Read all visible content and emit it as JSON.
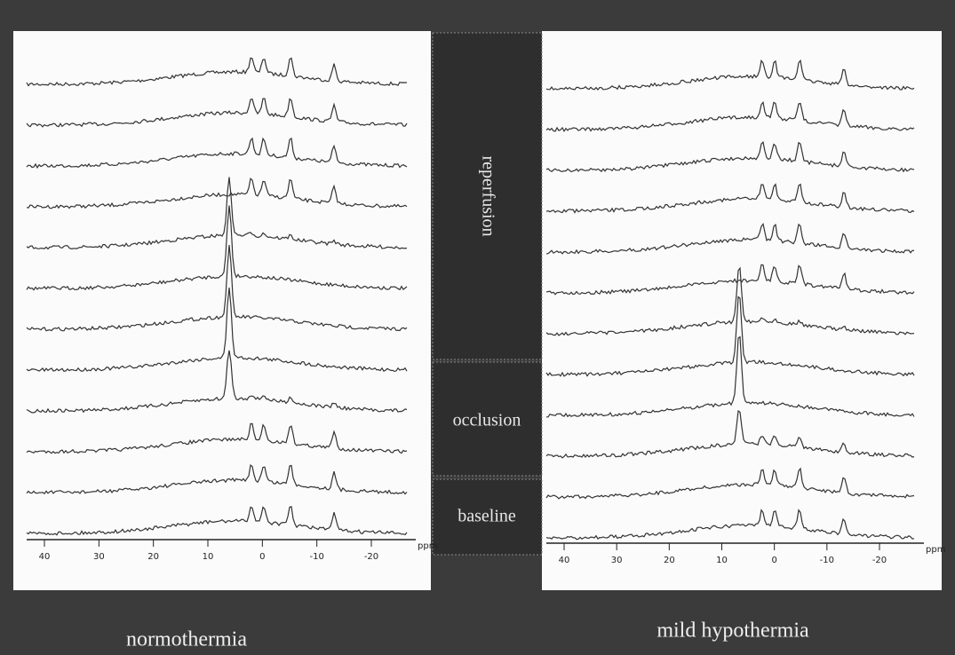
{
  "panels": [
    {
      "label": "normothermia",
      "axis": {
        "ticks": [
          40,
          30,
          20,
          10,
          0,
          -10,
          -20
        ],
        "unit": "ppm"
      }
    },
    {
      "label": "mild hypothermia",
      "axis": {
        "ticks": [
          40,
          30,
          20,
          10,
          0,
          -10,
          -20
        ],
        "unit": "ppm"
      }
    }
  ],
  "phases": [
    {
      "label": "reperfusion"
    },
    {
      "label": "occlusion"
    },
    {
      "label": "baseline"
    }
  ]
}
